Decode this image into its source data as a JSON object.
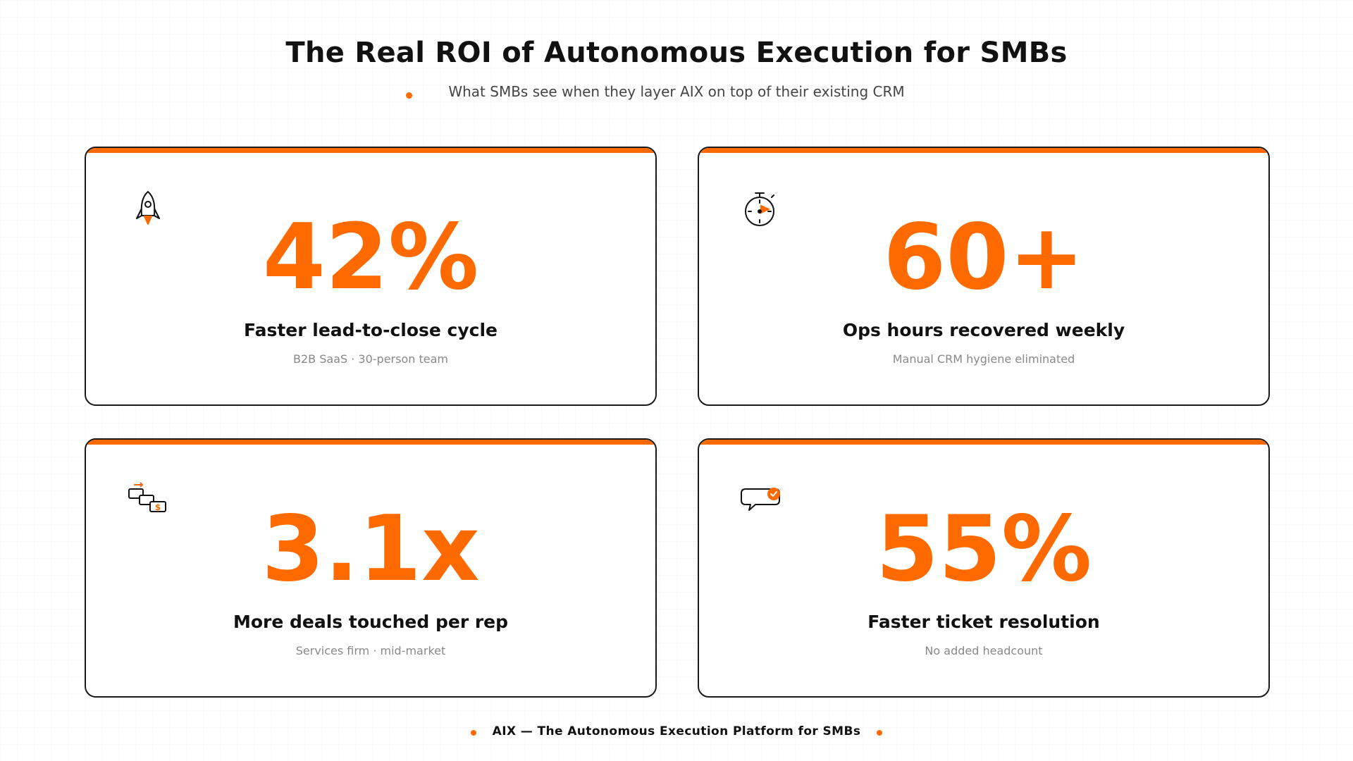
{
  "header": {
    "title": "The Real ROI of Autonomous Execution for SMBs",
    "subtitle": "What SMBs see when they layer AIX on top of their existing CRM"
  },
  "cards": [
    {
      "icon": "rocket-icon",
      "value": "42%",
      "label": "Faster lead-to-close cycle",
      "note": "B2B SaaS · 30-person team"
    },
    {
      "icon": "stopwatch-icon",
      "value": "60+",
      "label": "Ops hours recovered weekly",
      "note": "Manual CRM hygiene eliminated"
    },
    {
      "icon": "deals-flow-icon",
      "value": "3.1x",
      "label": "More deals touched per rep",
      "note": "Services firm · mid-market"
    },
    {
      "icon": "chat-check-icon",
      "value": "55%",
      "label": "Faster ticket resolution",
      "note": "No added headcount"
    }
  ],
  "footer": {
    "text": "AIX — The Autonomous Execution Platform for SMBs"
  },
  "colors": {
    "accent": "#ff6a00",
    "text": "#111111",
    "muted": "#888888"
  }
}
